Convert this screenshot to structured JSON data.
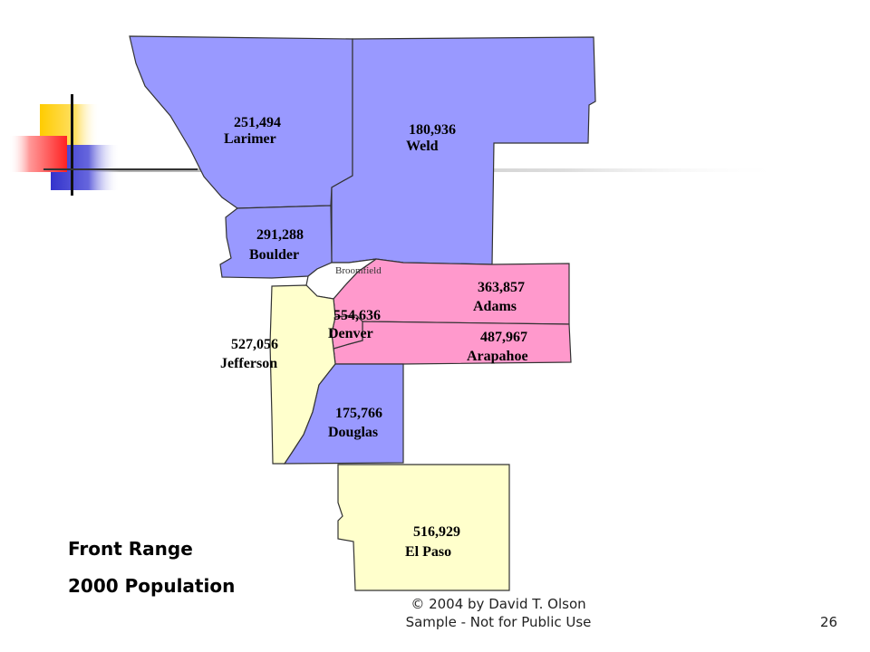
{
  "colors": {
    "north_counties": "#9999ff",
    "metro_counties": "#ff99cc",
    "west_south_counties": "#ffffcc",
    "broomfield": "#ffffff",
    "deco_yellow": "#ffcc00",
    "deco_red": "#ff3333",
    "deco_blue": "#3333cc"
  },
  "slide": {
    "title_line1": "Front Range",
    "title_line2": "2000 Population",
    "footer_line1": "© 2004 by David T. Olson",
    "footer_line2": "Sample - Not for Public Use",
    "slide_number": "26"
  },
  "counties": {
    "larimer": {
      "name": "Larimer",
      "population": "251,494"
    },
    "weld": {
      "name": "Weld",
      "population": "180,936"
    },
    "boulder": {
      "name": "Boulder",
      "population": "291,288"
    },
    "broomfield": {
      "name": "Broomfield"
    },
    "adams": {
      "name": "Adams",
      "population": "363,857"
    },
    "denver": {
      "name": "Denver",
      "population": "554,636"
    },
    "arapahoe": {
      "name": "Arapahoe",
      "population": "487,967"
    },
    "jefferson": {
      "name": "Jefferson",
      "population": "527,056"
    },
    "douglas": {
      "name": "Douglas",
      "population": "175,766"
    },
    "el_paso": {
      "name": "El Paso",
      "population": "516,929"
    }
  }
}
